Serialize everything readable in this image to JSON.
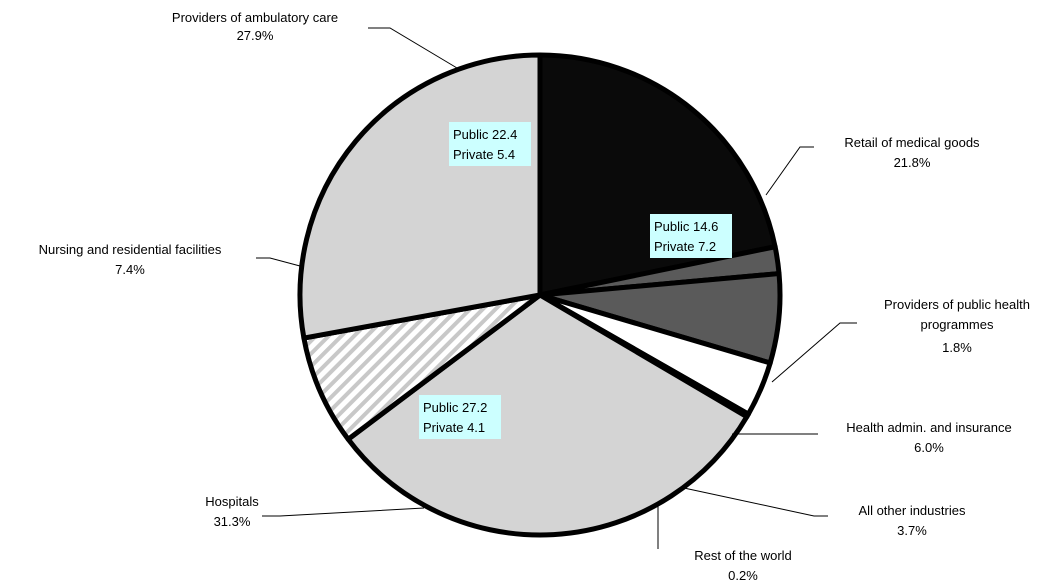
{
  "chart_data": {
    "type": "pie",
    "start_angle_deg": 0,
    "direction": "clockwise",
    "slices": [
      {
        "name": "Retail of medical goods",
        "value": 21.8,
        "value_label": "21.8%",
        "color": "#0a0a0a",
        "fill_style": "solid",
        "breakdown": {
          "public": "Public 14.6",
          "private": "Private 7.2"
        }
      },
      {
        "name": "Providers of public health programmes",
        "value": 1.8,
        "value_label": "1.8%",
        "color": "#5a5a5a",
        "fill_style": "solid"
      },
      {
        "name": "Health admin. and insurance",
        "value": 6.0,
        "value_label": "6.0%",
        "color": "#5a5a5a",
        "fill_style": "solid"
      },
      {
        "name": "All other industries",
        "value": 3.7,
        "value_label": "3.7%",
        "color": "#ffffff",
        "fill_style": "solid"
      },
      {
        "name": "Rest of the world",
        "value": 0.2,
        "value_label": "0.2%",
        "color": "#000000",
        "fill_style": "solid"
      },
      {
        "name": "Hospitals",
        "value": 31.3,
        "value_label": "31.3%",
        "color": "#d4d4d4",
        "fill_style": "solid",
        "breakdown": {
          "public": "Public 27.2",
          "private": "Private 4.1"
        }
      },
      {
        "name": "Nursing and residential facilities",
        "value": 7.4,
        "value_label": "7.4%",
        "color": "#ffffff",
        "fill_style": "hatched"
      },
      {
        "name": "Providers of ambulatory care",
        "value": 27.9,
        "value_label": "27.9%",
        "color": "#d4d4d4",
        "fill_style": "solid",
        "breakdown": {
          "public": "Public 22.4",
          "private": "Private 5.4"
        }
      }
    ],
    "labels": {
      "retail": {
        "line1": "Retail of medical goods",
        "line2": "21.8%"
      },
      "public_health": {
        "line1": "Providers of public health",
        "line2": "programmes",
        "line3": "1.8%"
      },
      "admin": {
        "line1": "Health admin. and insurance",
        "line2": "6.0%"
      },
      "other": {
        "line1": "All other industries",
        "line2": "3.7%"
      },
      "row": {
        "line1": "Rest of the world",
        "line2": "0.2%"
      },
      "hospitals": {
        "line1": "Hospitals",
        "line2": "31.3%"
      },
      "nursing": {
        "line1": "Nursing and residential facilities",
        "line2": "7.4%"
      },
      "ambulatory": {
        "line1": "Providers of ambulatory care",
        "line2": "27.9%"
      }
    },
    "hatch_color": "#c8c8c8",
    "inner_box_color": "#ccffff"
  }
}
